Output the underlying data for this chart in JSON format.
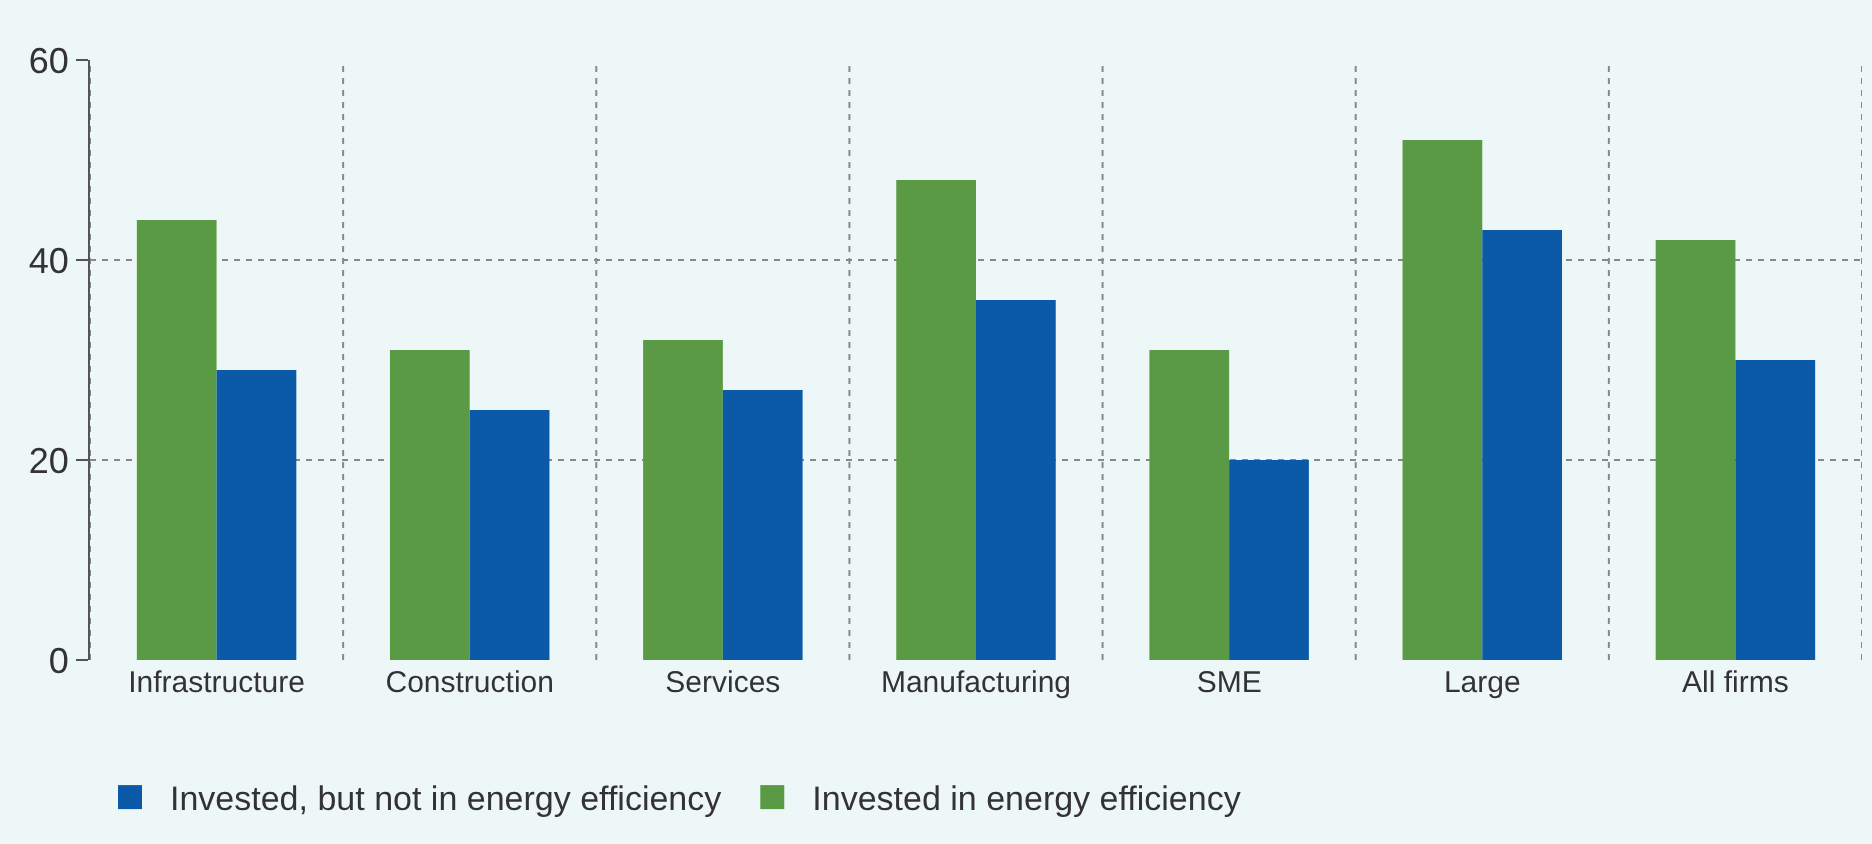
{
  "chart_data": {
    "type": "bar",
    "categories": [
      "Infrastructure",
      "Construction",
      "Services",
      "Manufacturing",
      "SME",
      "Large",
      "All firms"
    ],
    "series": [
      {
        "name": "Invested in energy efficiency",
        "color": "#5b9a45",
        "values": [
          44,
          31,
          32,
          48,
          31,
          52,
          42
        ]
      },
      {
        "name": "Invested, but not in energy efficiency",
        "color": "#0a5aa8",
        "values": [
          29,
          25,
          27,
          36,
          20,
          43,
          30
        ]
      }
    ],
    "ylim": [
      0,
      60
    ],
    "yticks": [
      0,
      20,
      40,
      60
    ],
    "grid": true,
    "legend": "bottom left"
  }
}
